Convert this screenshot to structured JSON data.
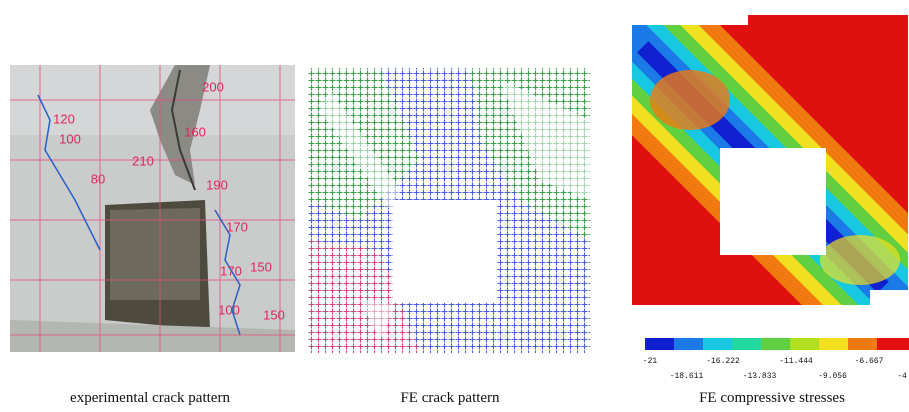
{
  "panels": [
    {
      "caption": "experimental crack pattern",
      "annotations": [
        "200",
        "120",
        "100",
        "160",
        "210",
        "80",
        "190",
        "170",
        "170",
        "150",
        "100",
        "150"
      ]
    },
    {
      "caption": "FE crack pattern"
    },
    {
      "caption": "FE compressive stresses",
      "legend_labels": [
        "-21",
        "-18.611",
        "-16.222",
        "-13.833",
        "-11.444",
        "-9.056",
        "-6.667",
        "-4"
      ]
    }
  ]
}
